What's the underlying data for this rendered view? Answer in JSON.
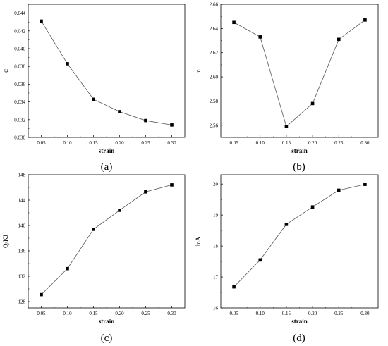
{
  "chart_data": [
    {
      "type": "line",
      "panel_label": "(a)",
      "xlabel": "strain",
      "ylabel": "α",
      "x": [
        0.05,
        0.1,
        0.15,
        0.2,
        0.25,
        0.3
      ],
      "y": [
        0.0431,
        0.0383,
        0.0343,
        0.0329,
        0.0319,
        0.0314
      ],
      "xlim": [
        0.025,
        0.325
      ],
      "ylim": [
        0.03,
        0.045
      ],
      "xticks": [
        0.05,
        0.1,
        0.15,
        0.2,
        0.25,
        0.3
      ],
      "xtick_labels": [
        "0.05",
        "0.10",
        "0.15",
        "0.20",
        "0.25",
        "0.30"
      ],
      "yticks": [
        0.03,
        0.032,
        0.034,
        0.036,
        0.038,
        0.04,
        0.042,
        0.044
      ],
      "ytick_labels": [
        "0.030",
        "0.032",
        "0.034",
        "0.036",
        "0.038",
        "0.040",
        "0.042",
        "0.044"
      ],
      "grid": false,
      "marker": "square"
    },
    {
      "type": "line",
      "panel_label": "(b)",
      "xlabel": "strain",
      "ylabel": "n",
      "x": [
        0.05,
        0.1,
        0.15,
        0.2,
        0.25,
        0.3
      ],
      "y": [
        2.645,
        2.633,
        2.559,
        2.578,
        2.631,
        2.647
      ],
      "xlim": [
        0.025,
        0.325
      ],
      "ylim": [
        2.55,
        2.66
      ],
      "xticks": [
        0.05,
        0.1,
        0.15,
        0.2,
        0.25,
        0.3
      ],
      "xtick_labels": [
        "0.05",
        "0.10",
        "0.15",
        "0.20",
        "0.25",
        "0.30"
      ],
      "yticks": [
        2.56,
        2.58,
        2.6,
        2.62,
        2.64,
        2.66
      ],
      "ytick_labels": [
        "2.56",
        "2.58",
        "2.60",
        "2.62",
        "2.64",
        "2.66"
      ],
      "grid": false,
      "marker": "square"
    },
    {
      "type": "line",
      "panel_label": "(c)",
      "xlabel": "strain",
      "ylabel": "Q/KJ",
      "x": [
        0.05,
        0.1,
        0.15,
        0.2,
        0.25,
        0.3
      ],
      "y": [
        129.1,
        133.2,
        139.4,
        142.4,
        145.3,
        146.4
      ],
      "xlim": [
        0.025,
        0.325
      ],
      "ylim": [
        127,
        148
      ],
      "xticks": [
        0.05,
        0.1,
        0.15,
        0.2,
        0.25,
        0.3
      ],
      "xtick_labels": [
        "0.05",
        "0.10",
        "0.15",
        "0.20",
        "0.25",
        "0.30"
      ],
      "yticks": [
        128,
        132,
        136,
        140,
        144,
        148
      ],
      "ytick_labels": [
        "128",
        "132",
        "136",
        "140",
        "144",
        "148"
      ],
      "grid": false,
      "marker": "square"
    },
    {
      "type": "line",
      "panel_label": "(d)",
      "xlabel": "strain",
      "ylabel": "lnA",
      "x": [
        0.05,
        0.1,
        0.15,
        0.2,
        0.25,
        0.3
      ],
      "y": [
        16.68,
        17.55,
        18.7,
        19.26,
        19.8,
        19.99
      ],
      "xlim": [
        0.025,
        0.325
      ],
      "ylim": [
        16,
        20.3
      ],
      "xticks": [
        0.05,
        0.1,
        0.15,
        0.2,
        0.25,
        0.3
      ],
      "xtick_labels": [
        "0.05",
        "0.10",
        "0.15",
        "0.20",
        "0.25",
        "0.30"
      ],
      "yticks": [
        16,
        17,
        18,
        19,
        20
      ],
      "ytick_labels": [
        "16",
        "17",
        "18",
        "19",
        "20"
      ],
      "grid": false,
      "marker": "square"
    }
  ]
}
